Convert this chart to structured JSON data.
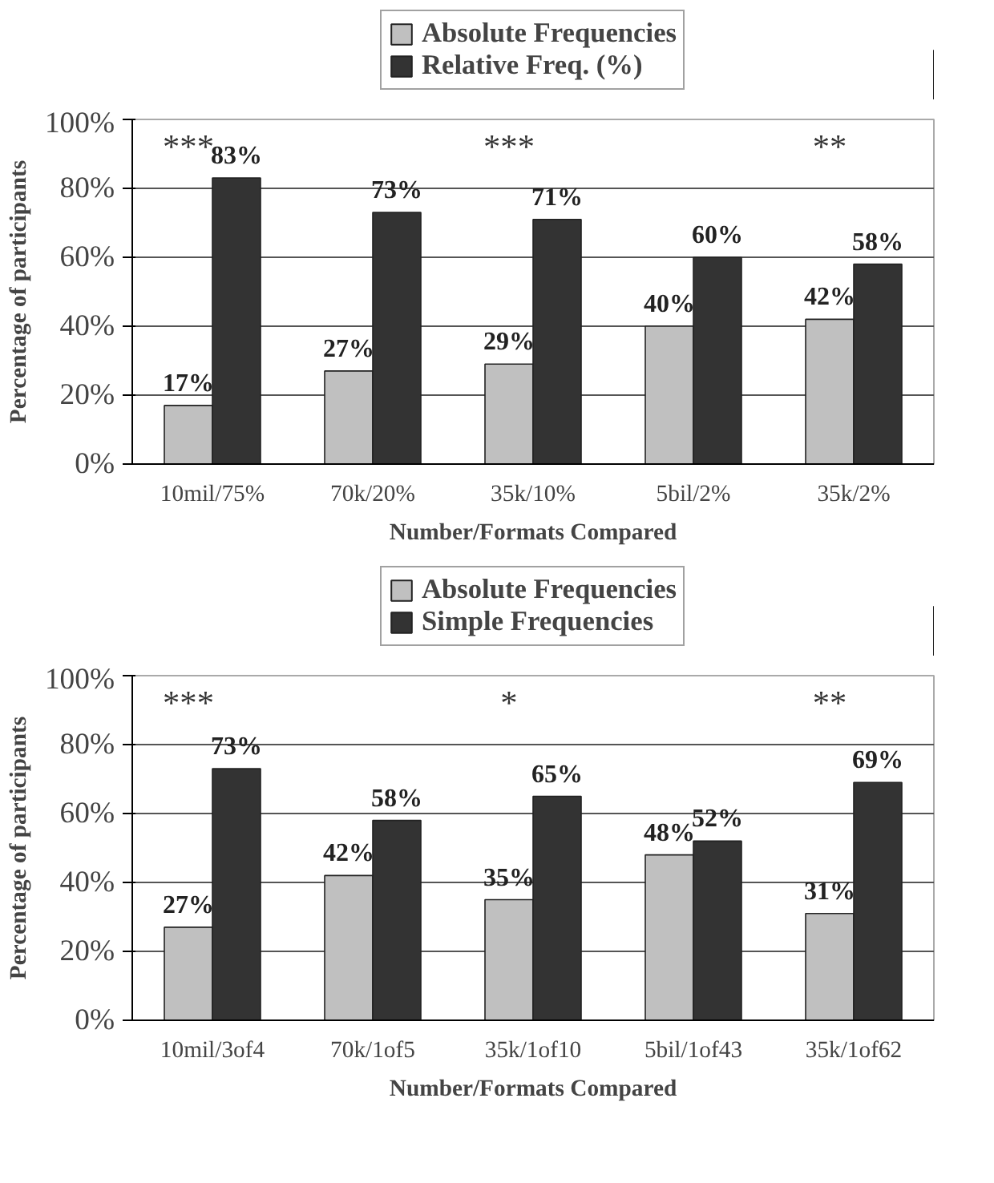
{
  "chart_data": [
    {
      "type": "bar",
      "xlabel": "Number/Formats Compared",
      "ylabel": "Percentage of participants",
      "categories": [
        "10mil/75%",
        "70k/20%",
        "35k/10%",
        "5bil/2%",
        "35k/2%"
      ],
      "series": [
        {
          "name": "Absolute Frequencies",
          "color": "#c0c0c0",
          "values": [
            17,
            27,
            29,
            40,
            42
          ],
          "value_labels": [
            "17%",
            "27%",
            "29%",
            "40%",
            "42%"
          ]
        },
        {
          "name": "Relative Freq. (%)",
          "color": "#333333",
          "values": [
            83,
            73,
            71,
            60,
            58
          ],
          "value_labels": [
            "83%",
            "73%",
            "71%",
            "60%",
            "58%"
          ]
        }
      ],
      "ylim": [
        0,
        100
      ],
      "yticks": [
        {
          "value": 0,
          "label": "0%"
        },
        {
          "value": 20,
          "label": "20%"
        },
        {
          "value": 40,
          "label": "40%"
        },
        {
          "value": 60,
          "label": "60%"
        },
        {
          "value": 80,
          "label": "80%"
        },
        {
          "value": 100,
          "label": "100%"
        }
      ],
      "grid": "y",
      "legend": "top",
      "annotations": [
        "***",
        "***",
        "**"
      ]
    },
    {
      "type": "bar",
      "xlabel": "Number/Formats Compared",
      "ylabel": "Percentage of participants",
      "categories": [
        "10mil/3of4",
        "70k/1of5",
        "35k/1of10",
        "5bil/1of43",
        "35k/1of62"
      ],
      "series": [
        {
          "name": "Absolute Frequencies",
          "color": "#c0c0c0",
          "values": [
            27,
            42,
            35,
            48,
            31
          ],
          "value_labels": [
            "27%",
            "42%",
            "35%",
            "48%",
            "31%"
          ]
        },
        {
          "name": "Simple Frequencies",
          "color": "#333333",
          "values": [
            73,
            58,
            65,
            52,
            69
          ],
          "value_labels": [
            "73%",
            "58%",
            "65%",
            "52%",
            "69%"
          ]
        }
      ],
      "ylim": [
        0,
        100
      ],
      "yticks": [
        {
          "value": 0,
          "label": "0%"
        },
        {
          "value": 20,
          "label": "20%"
        },
        {
          "value": 40,
          "label": "40%"
        },
        {
          "value": 60,
          "label": "60%"
        },
        {
          "value": 80,
          "label": "80%"
        },
        {
          "value": 100,
          "label": "100%"
        }
      ],
      "grid": "y",
      "legend": "top",
      "annotations": [
        "***",
        "*",
        "**"
      ]
    }
  ]
}
